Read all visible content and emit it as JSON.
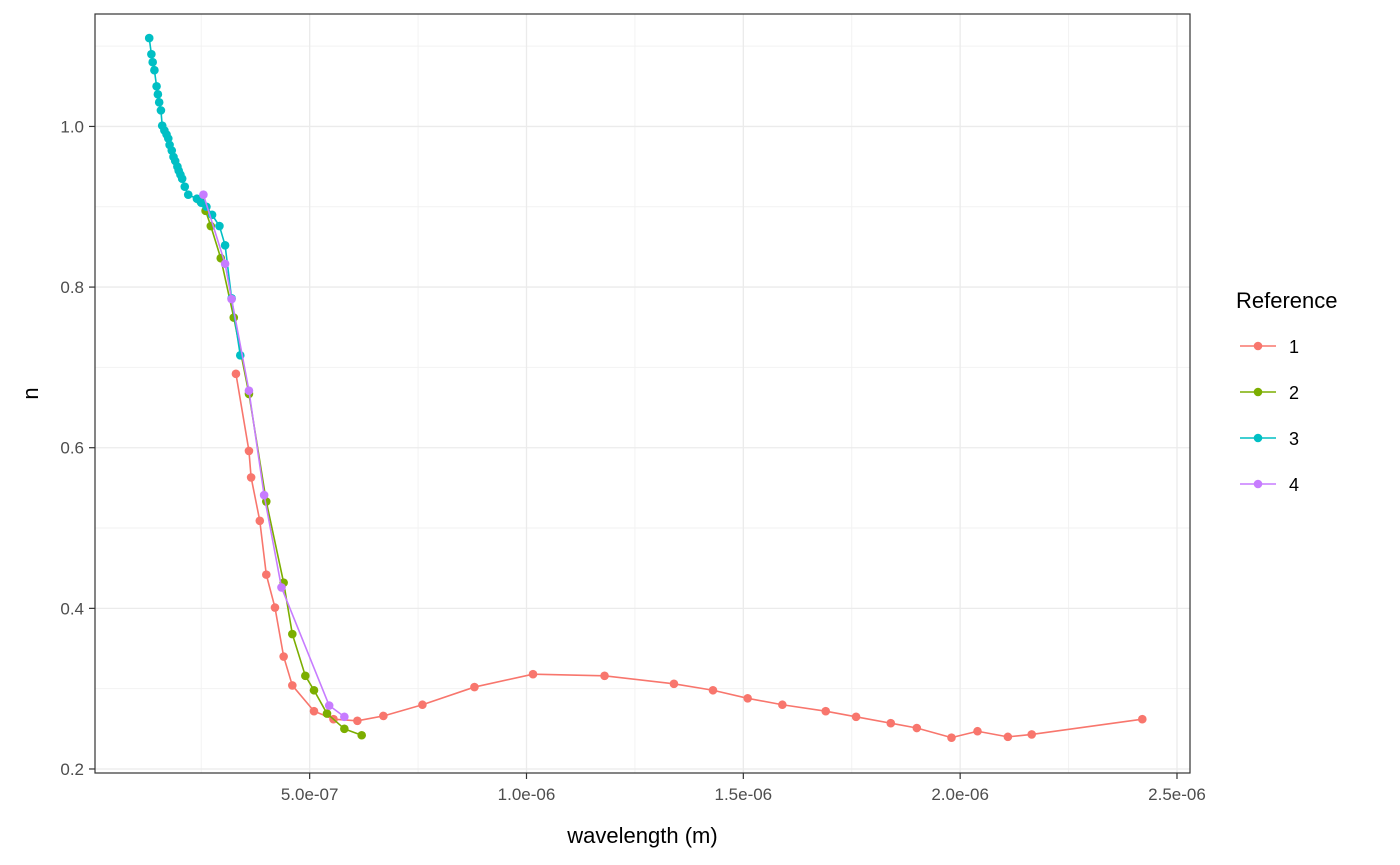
{
  "chart_data": {
    "type": "line",
    "title": "",
    "xlabel": "wavelength (m)",
    "ylabel": "n",
    "xlim": [
      5e-09,
      2.53e-06
    ],
    "ylim": [
      0.195,
      1.14
    ],
    "x_ticks": [
      {
        "value": 5e-07,
        "label": "5.0e-07"
      },
      {
        "value": 1e-06,
        "label": "1.0e-06"
      },
      {
        "value": 1.5e-06,
        "label": "1.5e-06"
      },
      {
        "value": 2e-06,
        "label": "2.0e-06"
      },
      {
        "value": 2.5e-06,
        "label": "2.5e-06"
      }
    ],
    "y_ticks": [
      {
        "value": 0.2,
        "label": "0.2"
      },
      {
        "value": 0.4,
        "label": "0.4"
      },
      {
        "value": 0.6,
        "label": "0.6"
      },
      {
        "value": 0.8,
        "label": "0.8"
      },
      {
        "value": 1.0,
        "label": "1.0"
      }
    ],
    "grid": true,
    "legend": {
      "title": "Reference",
      "position": "right"
    },
    "series": [
      {
        "name": "1",
        "color": "#F8766D",
        "points": [
          [
            3.3e-07,
            0.692
          ],
          [
            3.6e-07,
            0.596
          ],
          [
            3.65e-07,
            0.563
          ],
          [
            3.85e-07,
            0.509
          ],
          [
            4e-07,
            0.442
          ],
          [
            4.2e-07,
            0.401
          ],
          [
            4.4e-07,
            0.34
          ],
          [
            4.6e-07,
            0.304
          ],
          [
            5.1e-07,
            0.272
          ],
          [
            5.55e-07,
            0.262
          ],
          [
            6.1e-07,
            0.26
          ],
          [
            6.7e-07,
            0.266
          ],
          [
            7.6e-07,
            0.28
          ],
          [
            8.8e-07,
            0.302
          ],
          [
            1.015e-06,
            0.318
          ],
          [
            1.18e-06,
            0.316
          ],
          [
            1.34e-06,
            0.306
          ],
          [
            1.43e-06,
            0.298
          ],
          [
            1.51e-06,
            0.288
          ],
          [
            1.59e-06,
            0.28
          ],
          [
            1.69e-06,
            0.272
          ],
          [
            1.76e-06,
            0.265
          ],
          [
            1.84e-06,
            0.257
          ],
          [
            1.9e-06,
            0.251
          ],
          [
            1.98e-06,
            0.239
          ],
          [
            2.04e-06,
            0.247
          ],
          [
            2.11e-06,
            0.24
          ],
          [
            2.165e-06,
            0.243
          ],
          [
            2.42e-06,
            0.262
          ]
        ]
      },
      {
        "name": "2",
        "color": "#7CAE00",
        "points": [
          [
            2.48e-07,
            0.907
          ],
          [
            2.6e-07,
            0.895
          ],
          [
            2.72e-07,
            0.876
          ],
          [
            2.95e-07,
            0.836
          ],
          [
            3.25e-07,
            0.762
          ],
          [
            3.6e-07,
            0.667
          ],
          [
            4e-07,
            0.533
          ],
          [
            4.4e-07,
            0.432
          ],
          [
            4.6e-07,
            0.368
          ],
          [
            4.9e-07,
            0.316
          ],
          [
            5.1e-07,
            0.298
          ],
          [
            5.4e-07,
            0.269
          ],
          [
            5.8e-07,
            0.25
          ],
          [
            6.2e-07,
            0.242
          ]
        ]
      },
      {
        "name": "3",
        "color": "#00BFC4",
        "points": [
          [
            1.3e-07,
            1.11
          ],
          [
            1.35e-07,
            1.09
          ],
          [
            1.38e-07,
            1.08
          ],
          [
            1.42e-07,
            1.07
          ],
          [
            1.47e-07,
            1.05
          ],
          [
            1.5e-07,
            1.04
          ],
          [
            1.53e-07,
            1.03
          ],
          [
            1.57e-07,
            1.02
          ],
          [
            1.6e-07,
            1.001
          ],
          [
            1.65e-07,
            0.995
          ],
          [
            1.7e-07,
            0.99
          ],
          [
            1.74e-07,
            0.985
          ],
          [
            1.77e-07,
            0.977
          ],
          [
            1.82e-07,
            0.97
          ],
          [
            1.86e-07,
            0.962
          ],
          [
            1.9e-07,
            0.957
          ],
          [
            1.95e-07,
            0.95
          ],
          [
            1.98e-07,
            0.945
          ],
          [
            2.02e-07,
            0.94
          ],
          [
            2.06e-07,
            0.935
          ],
          [
            2.12e-07,
            0.925
          ],
          [
            2.2e-07,
            0.915
          ],
          [
            2.4e-07,
            0.91
          ],
          [
            2.5e-07,
            0.905
          ],
          [
            2.62e-07,
            0.9
          ],
          [
            2.75e-07,
            0.89
          ],
          [
            2.92e-07,
            0.876
          ],
          [
            3.05e-07,
            0.852
          ],
          [
            3.2e-07,
            0.786
          ],
          [
            3.4e-07,
            0.715
          ]
        ]
      },
      {
        "name": "4",
        "color": "#C77CFF",
        "points": [
          [
            2.55e-07,
            0.915
          ],
          [
            3.05e-07,
            0.829
          ],
          [
            3.2e-07,
            0.785
          ],
          [
            3.6e-07,
            0.671
          ],
          [
            3.95e-07,
            0.541
          ],
          [
            4.35e-07,
            0.426
          ],
          [
            5.45e-07,
            0.279
          ],
          [
            5.8e-07,
            0.265
          ]
        ]
      }
    ]
  }
}
